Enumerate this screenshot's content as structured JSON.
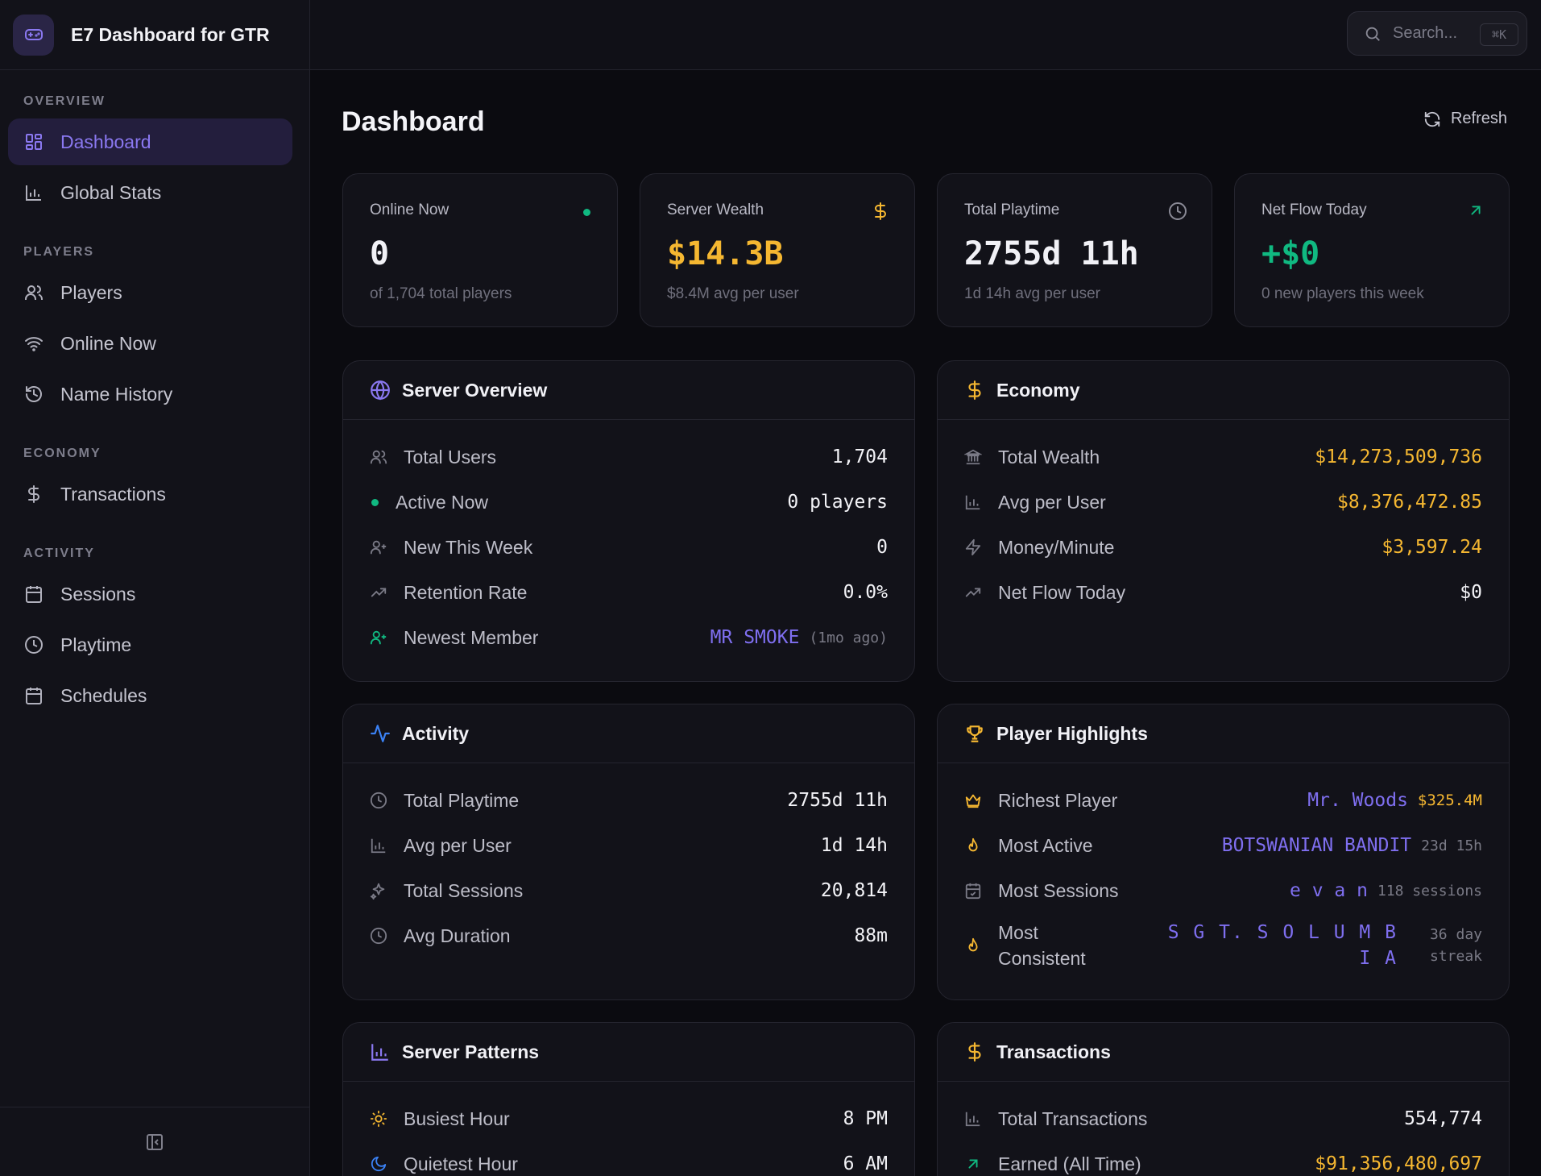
{
  "app": {
    "title": "E7 Dashboard for GTR"
  },
  "search": {
    "placeholder": "Search...",
    "shortcut": "⌘K"
  },
  "sidebar": {
    "sections": [
      {
        "label": "OVERVIEW",
        "items": [
          "Dashboard",
          "Global Stats"
        ]
      },
      {
        "label": "PLAYERS",
        "items": [
          "Players",
          "Online Now",
          "Name History"
        ]
      },
      {
        "label": "ECONOMY",
        "items": [
          "Transactions"
        ]
      },
      {
        "label": "ACTIVITY",
        "items": [
          "Sessions",
          "Playtime",
          "Schedules"
        ]
      }
    ],
    "active": "Dashboard"
  },
  "page": {
    "title": "Dashboard",
    "refresh_label": "Refresh"
  },
  "stats": [
    {
      "label": "Online Now",
      "value": "0",
      "sub": "of 1,704 total players"
    },
    {
      "label": "Server Wealth",
      "value": "$14.3B",
      "sub": "$8.4M avg per user"
    },
    {
      "label": "Total Playtime",
      "value": "2755d 11h",
      "sub": "1d 14h avg per user"
    },
    {
      "label": "Net Flow Today",
      "value": "+$0",
      "sub": "0 new players this week"
    }
  ],
  "server_overview": {
    "title": "Server Overview",
    "total_users": {
      "label": "Total Users",
      "value": "1,704"
    },
    "active_now": {
      "label": "Active Now",
      "value": "0 players"
    },
    "new_this_week": {
      "label": "New This Week",
      "value": "0"
    },
    "retention": {
      "label": "Retention Rate",
      "value": "0.0%"
    },
    "newest": {
      "label": "Newest Member",
      "value": "MR SMOKE",
      "meta": "(1mo ago)"
    }
  },
  "economy": {
    "title": "Economy",
    "total_wealth": {
      "label": "Total Wealth",
      "value": "$14,273,509,736"
    },
    "avg_per_user": {
      "label": "Avg per User",
      "value": "$8,376,472.85"
    },
    "money_minute": {
      "label": "Money/Minute",
      "value": "$3,597.24"
    },
    "net_flow": {
      "label": "Net Flow Today",
      "value": "$0"
    }
  },
  "activity": {
    "title": "Activity",
    "total_playtime": {
      "label": "Total Playtime",
      "value": "2755d 11h"
    },
    "avg_per_user": {
      "label": "Avg per User",
      "value": "1d 14h"
    },
    "total_sessions": {
      "label": "Total Sessions",
      "value": "20,814"
    },
    "avg_duration": {
      "label": "Avg Duration",
      "value": "88m"
    }
  },
  "highlights": {
    "title": "Player Highlights",
    "richest": {
      "label": "Richest Player",
      "name": "Mr. Woods",
      "meta": "$325.4M"
    },
    "most_active": {
      "label": "Most Active",
      "name": "BOTSWANIAN BANDIT",
      "meta": "23d 15h"
    },
    "most_sessions": {
      "label": "Most Sessions",
      "name": "e v a n",
      "meta": "118 sessions"
    },
    "most_consistent": {
      "label_line1": "Most",
      "label_line2": "Consistent",
      "name_line1": "S G T. S O L U M B",
      "name_line2": "I A",
      "meta_line1": "36 day",
      "meta_line2": "streak"
    }
  },
  "patterns": {
    "title": "Server Patterns",
    "busiest": {
      "label": "Busiest Hour",
      "value": "8 PM"
    },
    "quietest": {
      "label": "Quietest Hour",
      "value": "6 AM"
    }
  },
  "transactions": {
    "title": "Transactions",
    "total": {
      "label": "Total Transactions",
      "value": "554,774"
    },
    "earned": {
      "label": "Earned (All Time)",
      "value": "$91,356,480,697"
    }
  },
  "colors": {
    "accent": "#7f6ff0",
    "gold": "#f5b731",
    "green": "#10b981",
    "background": "#0b0b10",
    "card": "#121219"
  }
}
